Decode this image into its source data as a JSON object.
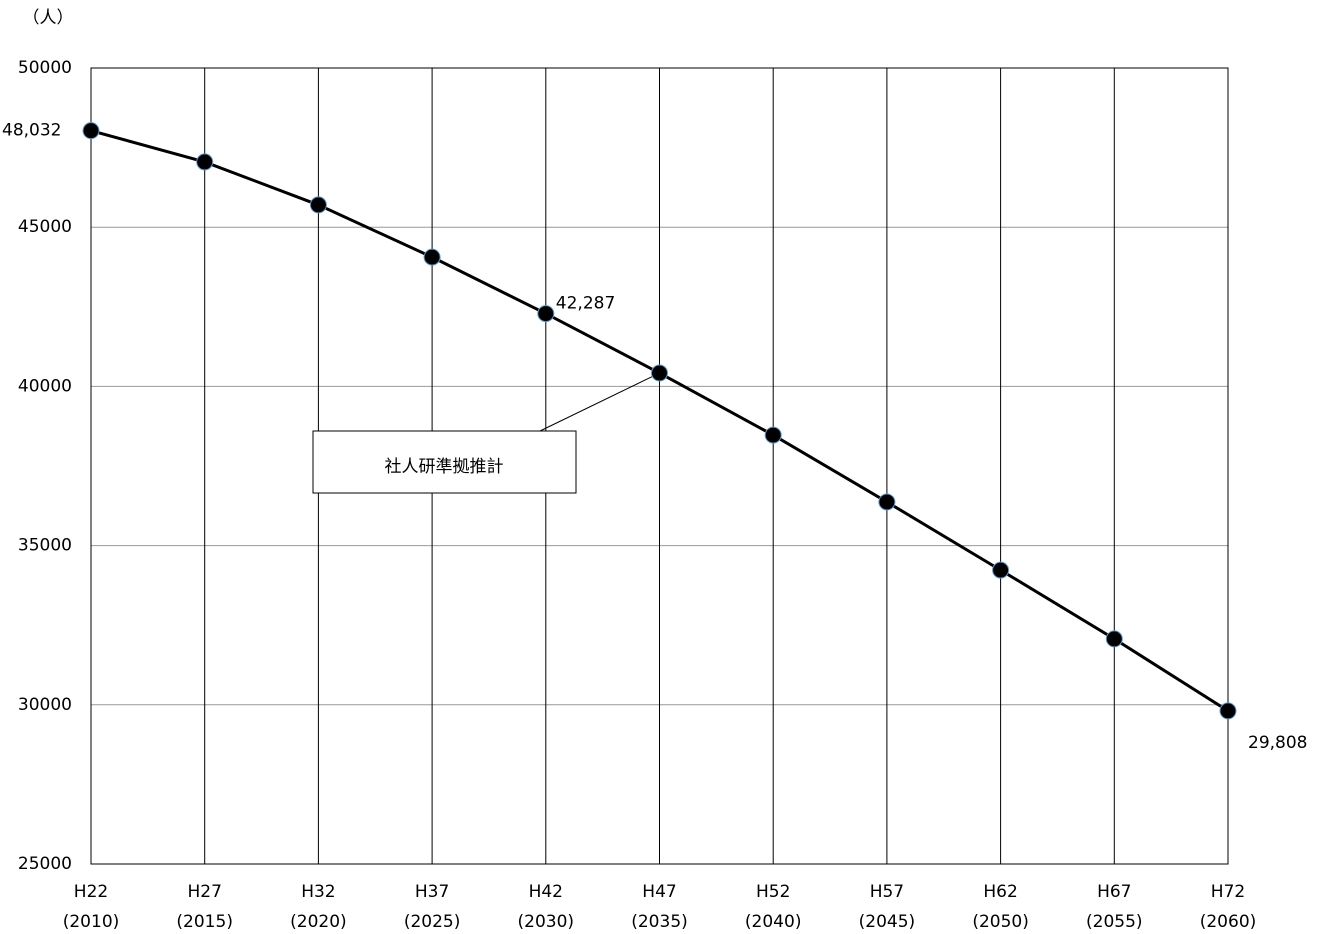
{
  "chart_data": {
    "type": "line",
    "y_axis_label": "（人）",
    "annotation": "社人研準拠推計",
    "categories": [
      [
        "H22",
        "(2010)"
      ],
      [
        "H27",
        "(2015)"
      ],
      [
        "H32",
        "(2020)"
      ],
      [
        "H37",
        "(2025)"
      ],
      [
        "H42",
        "(2030)"
      ],
      [
        "H47",
        "(2035)"
      ],
      [
        "H52",
        "(2040)"
      ],
      [
        "H57",
        "(2045)"
      ],
      [
        "H62",
        "(2050)"
      ],
      [
        "H67",
        "(2055)"
      ],
      [
        "H72",
        "(2060)"
      ]
    ],
    "values": [
      48032,
      47050,
      45700,
      44060,
      42287,
      40420,
      38470,
      36370,
      34230,
      32070,
      29808
    ],
    "value_labels": [
      "48,032",
      null,
      null,
      null,
      "42,287",
      null,
      null,
      null,
      null,
      null,
      "29,808"
    ],
    "color": "#000000",
    "ylim": [
      25000,
      50000
    ],
    "yticks": [
      25000,
      30000,
      35000,
      40000,
      45000,
      50000
    ],
    "grid": true
  }
}
